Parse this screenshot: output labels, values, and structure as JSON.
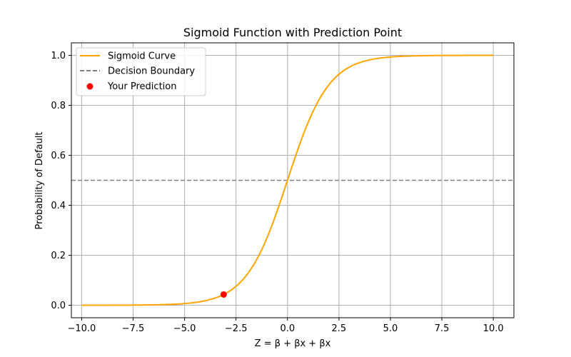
{
  "chart_data": {
    "type": "line",
    "title": "Sigmoid Function with Prediction Point",
    "xlabel": "Z = β + βx + βx",
    "ylabel": "Probability of Default",
    "xlim": [
      -10.5,
      11.0
    ],
    "ylim": [
      -0.05,
      1.05
    ],
    "xticks": [
      -10.0,
      -7.5,
      -5.0,
      -2.5,
      0.0,
      2.5,
      5.0,
      7.5,
      10.0
    ],
    "xtick_labels": [
      "−10.0",
      "−7.5",
      "−5.0",
      "−2.5",
      "0.0",
      "2.5",
      "5.0",
      "7.5",
      "10.0"
    ],
    "yticks": [
      0.0,
      0.2,
      0.4,
      0.6,
      0.8,
      1.0
    ],
    "ytick_labels": [
      "0.0",
      "0.2",
      "0.4",
      "0.6",
      "0.8",
      "1.0"
    ],
    "grid": true,
    "legend_position": "top-left",
    "series": [
      {
        "name": "Sigmoid Curve",
        "kind": "line",
        "color": "#ffa500",
        "x": [
          -10.0,
          -9.0,
          -8.0,
          -7.0,
          -6.0,
          -5.0,
          -4.5,
          -4.0,
          -3.5,
          -3.0,
          -2.5,
          -2.0,
          -1.5,
          -1.0,
          -0.5,
          0.0,
          0.5,
          1.0,
          1.5,
          2.0,
          2.5,
          3.0,
          3.5,
          4.0,
          4.5,
          5.0,
          6.0,
          7.0,
          8.0,
          9.0,
          10.0
        ],
        "y": [
          5e-05,
          0.00012,
          0.00034,
          0.00091,
          0.00247,
          0.0067,
          0.011,
          0.018,
          0.0293,
          0.0474,
          0.0759,
          0.1192,
          0.1824,
          0.2689,
          0.3775,
          0.5,
          0.6225,
          0.7311,
          0.8176,
          0.8808,
          0.9241,
          0.9526,
          0.9707,
          0.982,
          0.989,
          0.9933,
          0.9975,
          0.9991,
          0.9997,
          0.9999,
          1.0
        ]
      },
      {
        "name": "Decision Boundary",
        "kind": "hline",
        "color": "#808080",
        "y": 0.5
      },
      {
        "name": "Your Prediction",
        "kind": "scatter",
        "color": "#ff0000",
        "x": [
          -3.1
        ],
        "y": [
          0.043
        ]
      }
    ],
    "legend": [
      "Sigmoid Curve",
      "Decision Boundary",
      "Your Prediction"
    ],
    "colors": {
      "grid": "#b0b0b0",
      "axes": "#000000"
    }
  }
}
